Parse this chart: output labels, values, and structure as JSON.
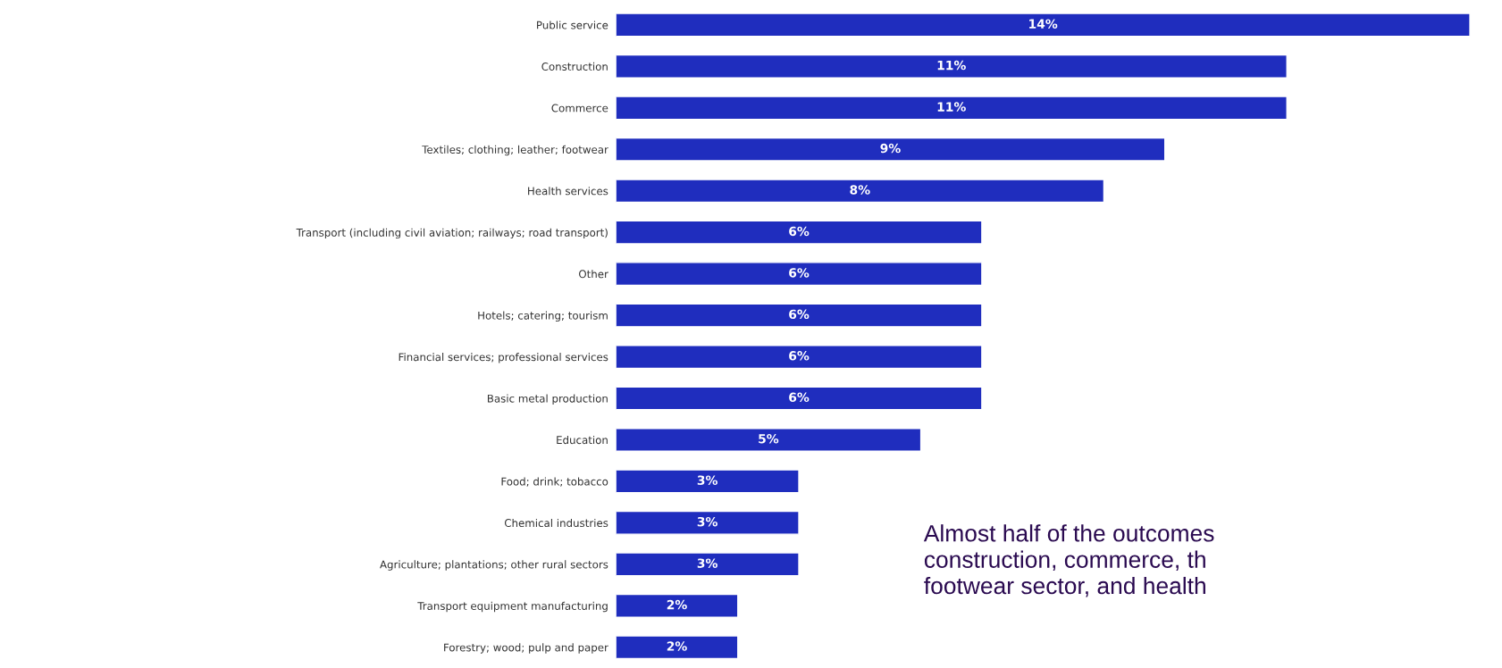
{
  "chart_data": {
    "type": "bar",
    "orientation": "horizontal",
    "categories": [
      "Public service",
      "Construction",
      "Commerce",
      "Textiles; clothing; leather; footwear",
      "Health services",
      "Transport (including civil aviation; railways; road transport)",
      "Other",
      "Hotels; catering; tourism",
      "Financial services; professional services",
      "Basic metal production",
      "Education",
      "Food; drink; tobacco",
      "Chemical industries",
      "Agriculture; plantations; other rural sectors",
      "Transport equipment manufacturing",
      "Forestry; wood; pulp and paper"
    ],
    "values": [
      14,
      11,
      11,
      9,
      8,
      6,
      6,
      6,
      6,
      6,
      5,
      3,
      3,
      3,
      2,
      2
    ],
    "value_labels": [
      "14%",
      "11%",
      "11%",
      "9%",
      "8%",
      "6%",
      "6%",
      "6%",
      "6%",
      "6%",
      "5%",
      "3%",
      "3%",
      "3%",
      "2%",
      "2%"
    ],
    "color": "#1f2dbe",
    "annotations": [
      "Almost half of the outcomes\nconstruction, commerce, th\nfootwear sector, and health"
    ]
  }
}
